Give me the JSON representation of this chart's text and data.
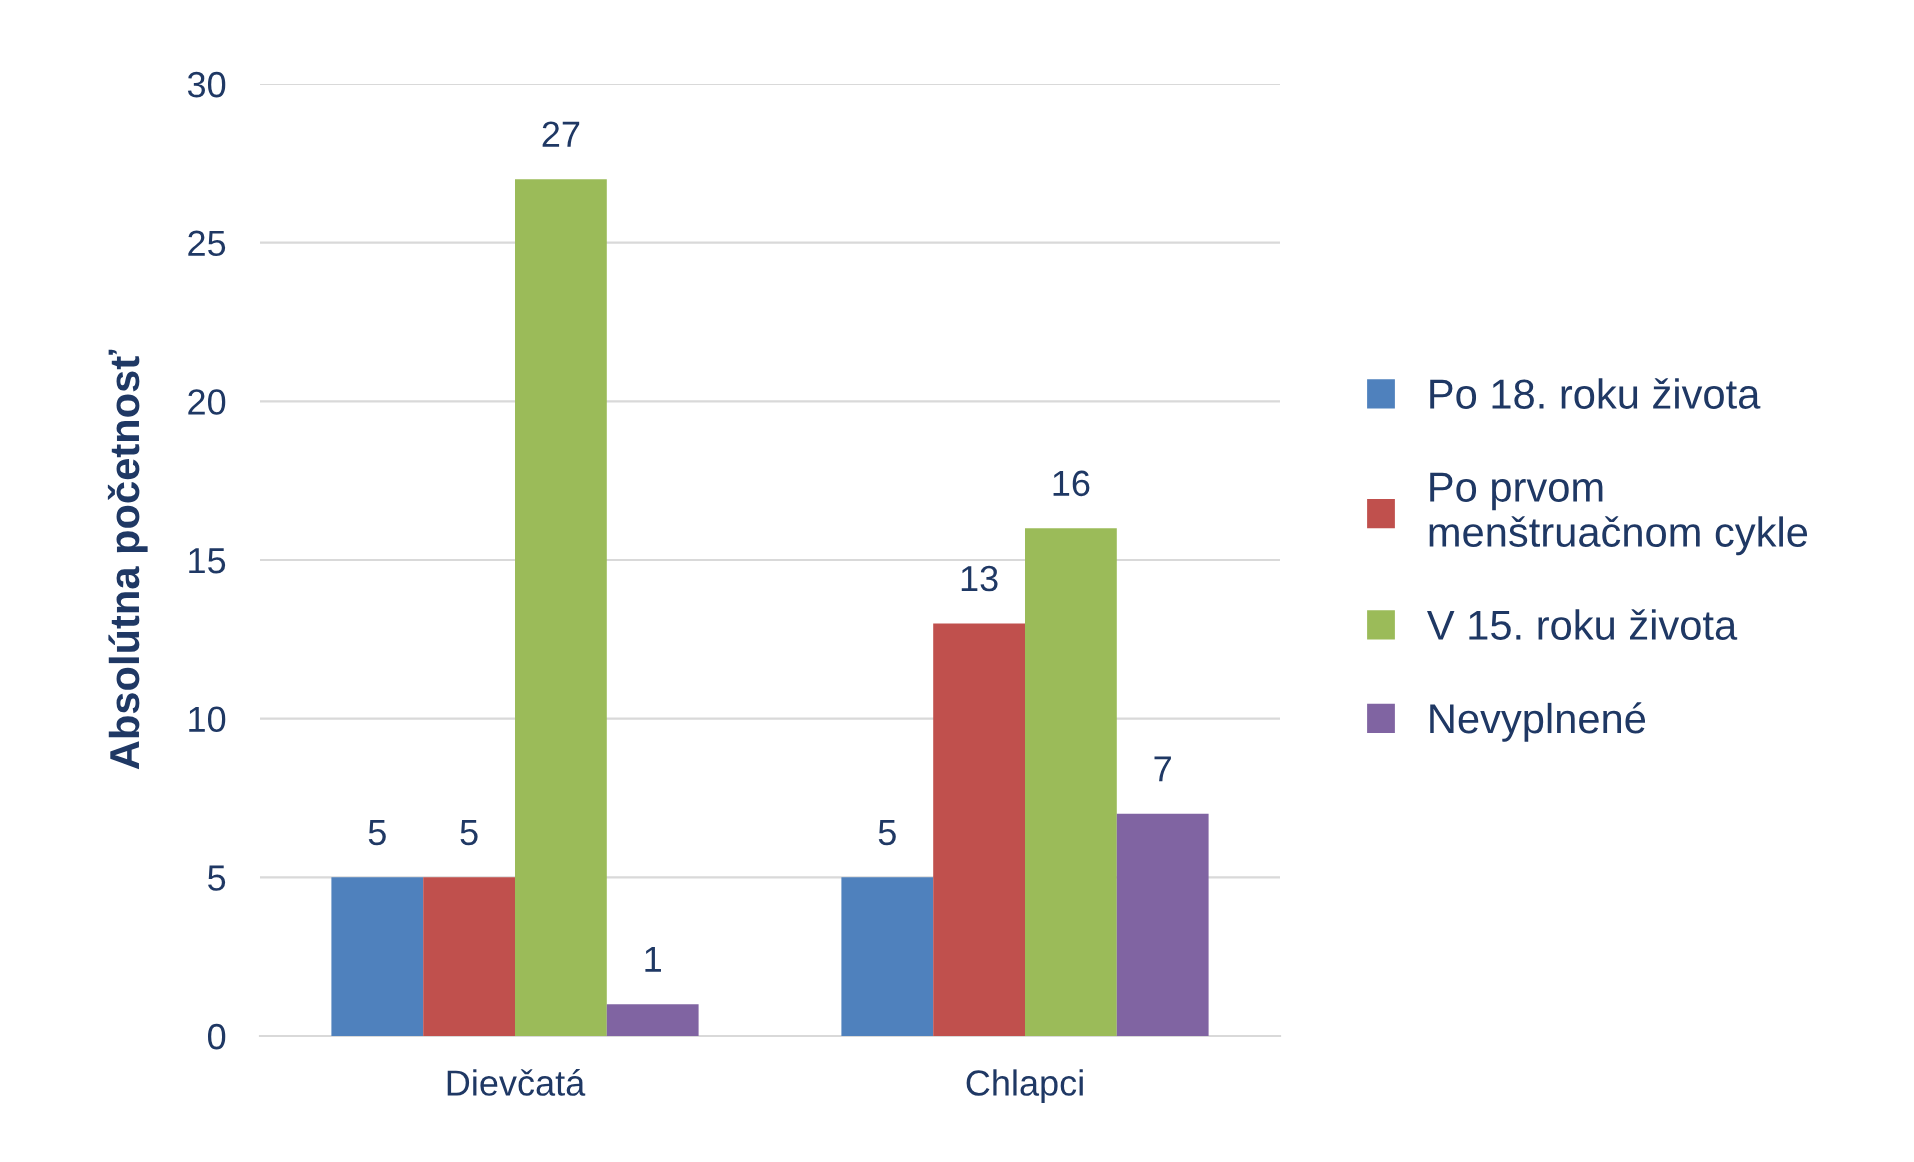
{
  "chart_data": {
    "type": "bar",
    "ylabel": "Absolútna početnosť",
    "categories": [
      "Dievčatá",
      "Chlapci"
    ],
    "series": [
      {
        "name": "Po 18. roku života",
        "color": "#4f81bd",
        "values": [
          5,
          5
        ]
      },
      {
        "name": "Po prvom menštruačnom cykle",
        "color": "#c0504d",
        "values": [
          5,
          13
        ]
      },
      {
        "name": "V 15. roku života",
        "color": "#9bbb59",
        "values": [
          27,
          16
        ]
      },
      {
        "name": "Nevyplnené",
        "color": "#8064a2",
        "values": [
          1,
          7
        ]
      }
    ],
    "ylim": [
      0,
      30
    ],
    "yticks": [
      0,
      5,
      10,
      15,
      20,
      25,
      30
    ],
    "grid": "y",
    "legend": "right",
    "data_labels": true
  }
}
